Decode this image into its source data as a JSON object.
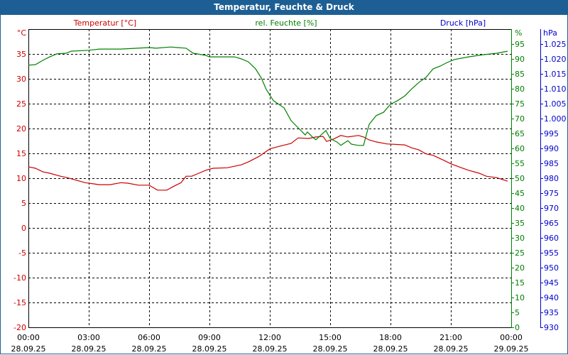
{
  "window": {
    "title": "Temperatur, Feuchte & Druck"
  },
  "chart_data": {
    "type": "line",
    "title": "Temperatur, Feuchte & Druck",
    "colors": {
      "temperature": "#cc0000",
      "humidity": "#008000",
      "pressure": "#0000cc",
      "titlebar": "#1d5f94"
    },
    "axes": {
      "left": {
        "label": "Temperatur [°C]",
        "unit": "°C",
        "range": [
          -20,
          40
        ],
        "ticks": [
          35,
          30,
          25,
          20,
          15,
          10,
          5,
          0,
          -5,
          -10,
          -15,
          -20
        ]
      },
      "right1": {
        "label": "rel. Feuchte [%]",
        "unit": "%",
        "range": [
          0,
          100
        ],
        "ticks": [
          95,
          90,
          85,
          80,
          75,
          70,
          65,
          60,
          55,
          50,
          45,
          40,
          35,
          30,
          25,
          20,
          15,
          10,
          5,
          0
        ]
      },
      "right2": {
        "label": "Druck [hPa]",
        "unit": "hPa",
        "range": [
          930,
          1030
        ],
        "ticks": [
          "1.025",
          "1.020",
          "1.015",
          "1.010",
          "1.005",
          "1.000",
          "995",
          "990",
          "985",
          "980",
          "975",
          "970",
          "965",
          "960",
          "955",
          "950",
          "945",
          "940",
          "935",
          "930"
        ]
      },
      "x": {
        "range_hours": [
          0,
          24
        ],
        "ticks": [
          {
            "time": "00:00",
            "date": "28.09.25"
          },
          {
            "time": "03:00",
            "date": "28.09.25"
          },
          {
            "time": "06:00",
            "date": "28.09.25"
          },
          {
            "time": "09:00",
            "date": "28.09.25"
          },
          {
            "time": "12:00",
            "date": "28.09.25"
          },
          {
            "time": "15:00",
            "date": "28.09.25"
          },
          {
            "time": "18:00",
            "date": "28.09.25"
          },
          {
            "time": "21:00",
            "date": "28.09.25"
          },
          {
            "time": "00:00",
            "date": "29.09.25"
          }
        ]
      }
    },
    "grid": true,
    "series": [
      {
        "name": "Temperatur [°C]",
        "axis": "left",
        "x": [
          0,
          0.35,
          0.71,
          1.06,
          1.59,
          1.94,
          2.29,
          2.82,
          3.53,
          4.06,
          4.59,
          4.94,
          5.47,
          6.0,
          6.42,
          6.88,
          7.24,
          7.59,
          7.84,
          8.12,
          8.47,
          8.82,
          9.18,
          9.88,
          10.59,
          10.94,
          11.47,
          12.0,
          12.18,
          12.46,
          13.06,
          13.41,
          13.94,
          14.29,
          14.65,
          14.82,
          15.18,
          15.53,
          15.88,
          16.41,
          16.66,
          16.94,
          17.29,
          17.82,
          18.71,
          19.06,
          19.41,
          19.76,
          20.12,
          20.65,
          21.0,
          21.53,
          21.88,
          22.41,
          22.76,
          23.29,
          23.82
        ],
        "y": [
          12.3,
          12.0,
          11.3,
          11.0,
          10.4,
          10.1,
          9.7,
          9.1,
          8.7,
          8.7,
          9.1,
          9.0,
          8.6,
          8.6,
          7.6,
          7.6,
          8.4,
          9.1,
          10.4,
          10.4,
          11.0,
          11.6,
          12.0,
          12.1,
          12.7,
          13.3,
          14.4,
          15.9,
          16.1,
          16.4,
          17.0,
          18.1,
          18.0,
          18.3,
          18.4,
          17.4,
          17.9,
          18.6,
          18.3,
          18.6,
          18.3,
          17.7,
          17.3,
          16.9,
          16.7,
          16.1,
          15.7,
          14.9,
          14.6,
          13.6,
          12.9,
          12.1,
          11.6,
          11.0,
          10.4,
          10.1,
          9.4
        ]
      },
      {
        "name": "rel. Feuchte [%]",
        "axis": "right1",
        "x": [
          0,
          0.35,
          0.71,
          1.06,
          1.41,
          1.87,
          2.12,
          3.0,
          3.53,
          4.59,
          6.0,
          6.35,
          7.06,
          7.41,
          7.84,
          8.19,
          8.82,
          9.0,
          10.24,
          10.59,
          10.94,
          11.29,
          11.58,
          11.82,
          12.18,
          12.71,
          13.06,
          13.41,
          13.76,
          13.87,
          14.12,
          14.29,
          14.79,
          15.0,
          15.35,
          15.53,
          15.88,
          16.06,
          16.41,
          16.66,
          16.94,
          17.29,
          17.65,
          18.0,
          18.35,
          18.71,
          19.06,
          19.41,
          19.76,
          20.12,
          20.47,
          20.82,
          21.18,
          21.88,
          22.59,
          23.29,
          23.82
        ],
        "y": [
          87.9,
          88.1,
          89.5,
          90.7,
          91.7,
          91.9,
          92.6,
          92.9,
          93.3,
          93.3,
          93.8,
          93.6,
          94.0,
          93.8,
          93.6,
          91.9,
          91.2,
          90.7,
          90.7,
          90.0,
          89.0,
          86.7,
          83.6,
          79.8,
          76.0,
          73.6,
          69.3,
          66.9,
          64.5,
          65.5,
          63.8,
          62.9,
          66.0,
          63.3,
          62.1,
          61.0,
          62.6,
          61.4,
          61.0,
          61.0,
          68.1,
          71.0,
          72.1,
          74.8,
          76.0,
          77.6,
          80.0,
          82.1,
          83.8,
          86.7,
          87.6,
          88.8,
          89.8,
          90.7,
          91.4,
          91.9,
          92.6
        ]
      },
      {
        "name": "Druck [hPa]",
        "axis": "right2",
        "x": [],
        "y": []
      }
    ]
  }
}
